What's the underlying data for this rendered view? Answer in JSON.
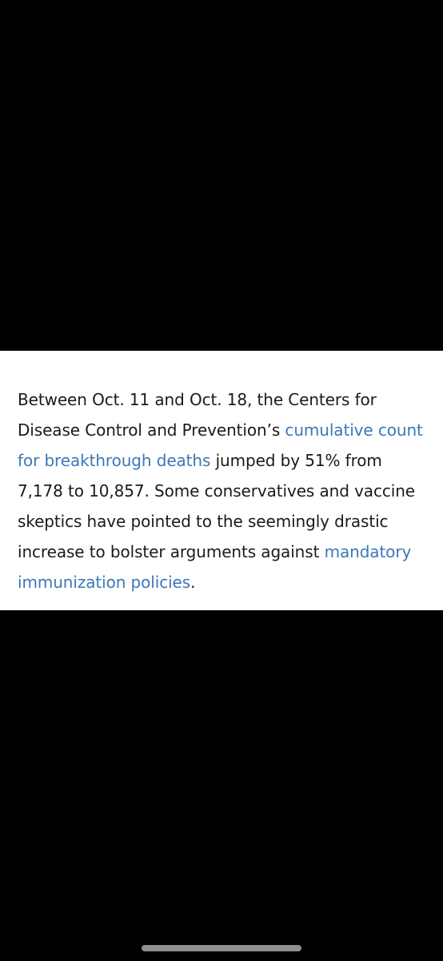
{
  "article": {
    "text_1": "Between Oct. 11 and Oct. 18, the Centers for Disease Control and Prevention’s ",
    "link_1": "cumulative count for breakthrough deaths",
    "text_2": " jumped by 51% from 7,178 to 10,857. Some conservatives and vaccine skeptics have pointed to the seemingly drastic increase to bolster arguments against ",
    "link_2": "mandatory immunization policies",
    "text_3": "."
  },
  "colors": {
    "background": "#000000",
    "panel": "#ffffff",
    "text": "#1a1a1a",
    "link": "#3b78b9",
    "home_indicator": "#8e8e93"
  }
}
